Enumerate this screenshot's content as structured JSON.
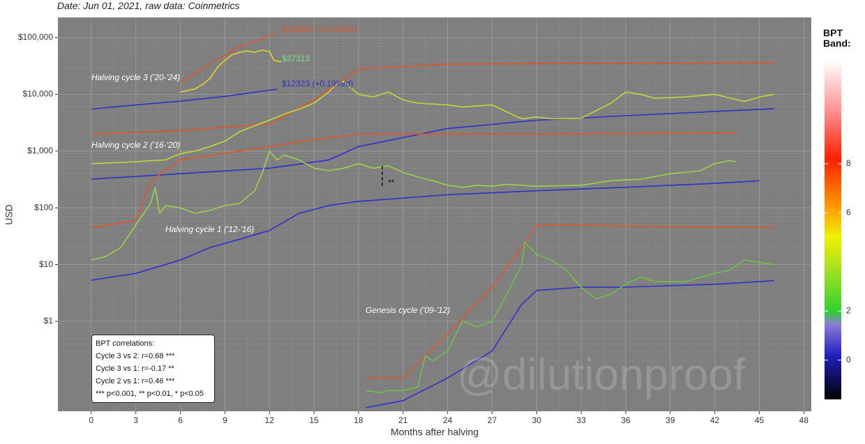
{
  "chart_data": {
    "type": "line",
    "subtitle": "Date: Jun 01, 2021, raw data: Coinmetrics",
    "y_label": "USD",
    "x_label": "Months after halving",
    "log_y": true,
    "grid": true,
    "background": "#7f7f7f",
    "xlim": [
      -2.25,
      48.5
    ],
    "xticks": [
      0,
      3,
      6,
      9,
      12,
      15,
      18,
      21,
      24,
      27,
      30,
      33,
      36,
      39,
      42,
      45,
      48
    ],
    "ylim": [
      0.026,
      227000
    ],
    "yticks": [
      {
        "value": 1,
        "label": "$1"
      },
      {
        "value": 10,
        "label": "$10"
      },
      {
        "value": 100,
        "label": "$100"
      },
      {
        "value": 1000,
        "label": "$1,000"
      },
      {
        "value": 10000,
        "label": "$10,000"
      },
      {
        "value": 100000,
        "label": "$100,000"
      }
    ],
    "series": [
      {
        "color": "#e0562a",
        "x": [
          6,
          8,
          10,
          12.5
        ],
        "values": [
          16000,
          35000,
          70000,
          118582
        ]
      },
      {
        "color": "#2f2fcc",
        "x": [
          0,
          3,
          6,
          9,
          12.5
        ],
        "values": [
          5500,
          6500,
          7600,
          9200,
          12323
        ]
      },
      {
        "color": "#e3d52c",
        "x": [
          6,
          7,
          7.5,
          8,
          8.5,
          9,
          9.5,
          10,
          10.5,
          11,
          11.5,
          12,
          12.3,
          12.8
        ],
        "values": [
          11000,
          12500,
          15000,
          19000,
          30000,
          40000,
          50000,
          55000,
          58000,
          55000,
          60000,
          57000,
          40000,
          37313
        ]
      },
      {
        "color": "#e0562a",
        "x": [
          0,
          6,
          12,
          15,
          18,
          24,
          30,
          46
        ],
        "values": [
          2000,
          2300,
          3000,
          8000,
          28000,
          34000,
          35000,
          36000
        ]
      },
      {
        "color": "#2f2fcc",
        "x": [
          0,
          6,
          12,
          16,
          18,
          24,
          30,
          36,
          42,
          46
        ],
        "values": [
          320,
          400,
          500,
          700,
          1200,
          2500,
          3500,
          4200,
          5000,
          5600
        ]
      },
      {
        "color": "#c2d83a",
        "x": [
          0,
          3,
          5,
          6,
          7,
          8,
          9,
          10,
          11,
          12,
          13,
          14,
          15,
          16,
          16.5,
          17,
          17.5,
          18,
          19,
          20,
          21,
          22,
          24,
          25,
          27,
          29,
          30,
          31,
          33,
          35,
          36,
          37,
          38,
          40,
          42,
          44,
          45,
          46
        ],
        "values": [
          600,
          650,
          700,
          900,
          1000,
          1200,
          1500,
          2200,
          2800,
          3500,
          4500,
          5500,
          7000,
          11000,
          15000,
          17000,
          13000,
          10000,
          9000,
          11000,
          8000,
          7000,
          6500,
          6000,
          6500,
          3700,
          4000,
          3700,
          3800,
          7000,
          11000,
          10000,
          8500,
          9000,
          10000,
          7500,
          9000,
          10000
        ]
      },
      {
        "color": "#e0562a",
        "x": [
          0,
          3,
          4,
          6,
          12,
          15,
          18,
          30,
          43.5
        ],
        "values": [
          45,
          60,
          300,
          700,
          1200,
          1600,
          2000,
          2000,
          2100
        ]
      },
      {
        "color": "#2f2fcc",
        "x": [
          0,
          3,
          6,
          8,
          10,
          12,
          14,
          16,
          18,
          24,
          30,
          36,
          42,
          45
        ],
        "values": [
          5.3,
          7,
          12,
          20,
          28,
          40,
          80,
          110,
          130,
          170,
          200,
          230,
          270,
          300
        ]
      },
      {
        "color": "#9ad448",
        "x": [
          0,
          1,
          2,
          3,
          4,
          4.3,
          4.6,
          5,
          6,
          7,
          8,
          9,
          10,
          11,
          11.5,
          12,
          12.5,
          13,
          14,
          15,
          16,
          17,
          18,
          19,
          20,
          21,
          22,
          23,
          24,
          25,
          26,
          27,
          28,
          30,
          33,
          35,
          37,
          39,
          41,
          42,
          43,
          43.4
        ],
        "values": [
          12,
          14,
          20,
          50,
          120,
          230,
          80,
          110,
          100,
          80,
          90,
          110,
          120,
          200,
          400,
          1000,
          700,
          850,
          700,
          500,
          450,
          500,
          600,
          500,
          550,
          420,
          350,
          300,
          250,
          230,
          250,
          240,
          260,
          240,
          250,
          300,
          320,
          400,
          450,
          600,
          680,
          650
        ]
      },
      {
        "color": "#e0562a",
        "x": [
          18.5,
          21,
          24,
          27,
          29,
          30,
          33,
          40,
          46
        ],
        "values": [
          0.1,
          0.1,
          0.6,
          4,
          20,
          50,
          50,
          46,
          45
        ]
      },
      {
        "color": "#2f2fcc",
        "x": [
          18.5,
          21,
          24,
          27,
          29,
          30,
          33,
          36,
          42,
          46
        ],
        "values": [
          0.03,
          0.04,
          0.1,
          0.3,
          2,
          3.5,
          4,
          4,
          4.5,
          5.2
        ]
      },
      {
        "color": "#6ec24a",
        "x": [
          18.5,
          19.5,
          20,
          21,
          22,
          22.5,
          23,
          24,
          25,
          26,
          27,
          28,
          29,
          29.2,
          30,
          31,
          32,
          33,
          34,
          35,
          36,
          37,
          38,
          40,
          42,
          43,
          44,
          45,
          46
        ],
        "values": [
          0.06,
          0.055,
          0.06,
          0.06,
          0.07,
          0.25,
          0.2,
          0.3,
          1.0,
          0.8,
          1.0,
          3,
          10,
          25,
          15,
          12,
          8,
          4,
          2.5,
          3,
          4.5,
          6,
          5,
          5,
          7,
          8,
          12,
          11,
          10
        ]
      }
    ],
    "annotations": [
      "Halving cycle 3 ('20-'24)",
      "Halving cycle 2 ('16-'20)",
      "Halving cycle 1 ('12-'16)",
      "Genesis cycle ('09-'12)",
      "$118582 (+0.16%/d)",
      "$37313",
      "$12323 (+0.19%/d)",
      "**"
    ],
    "colorbar": {
      "title": "BPT Band:",
      "lim": [
        -1.6,
        12.2
      ],
      "ticks": [
        0,
        2,
        6,
        8
      ]
    },
    "correlations": {
      "title": "BPT correlations:",
      "lines": [
        "Cycle 3 vs 2: r=0.68 ***",
        "Cycle 3 vs 1: r=-0.17 **",
        "Cycle 2 vs 1: r=0.46 ***",
        "*** p<0.001, ** p<0.01, * p<0.05"
      ]
    },
    "watermark": "@dilutionproof"
  }
}
